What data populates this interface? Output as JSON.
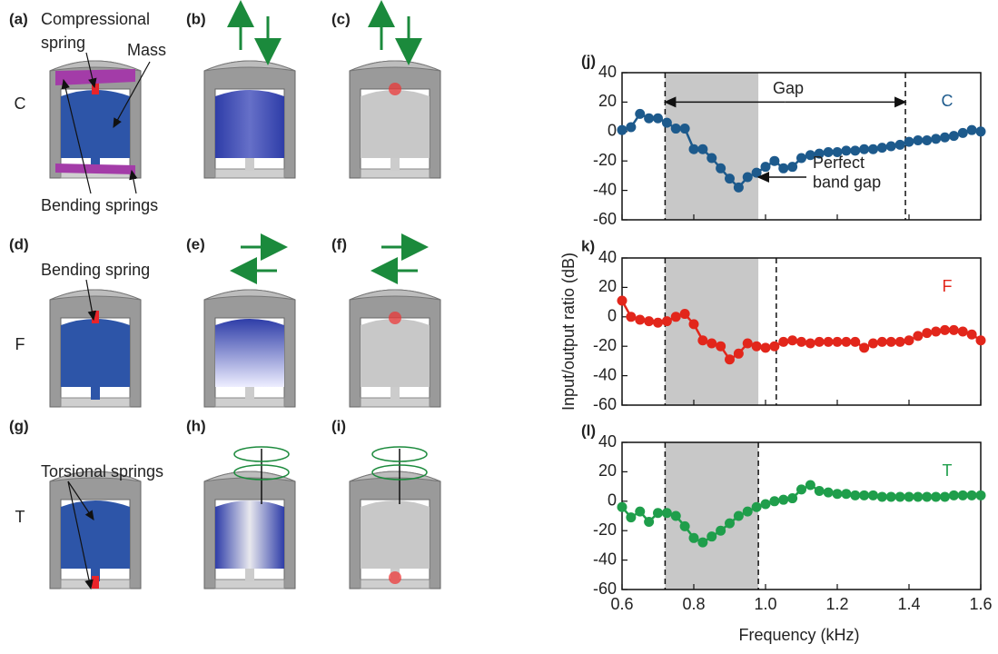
{
  "panels": {
    "labels": [
      "(a)",
      "(b)",
      "(c)",
      "(d)",
      "(e)",
      "(f)",
      "(g)",
      "(h)",
      "(i)"
    ],
    "rows": [
      "C",
      "F",
      "T"
    ],
    "annotations": [
      "Compressional",
      "spring",
      "Mass",
      "Bending springs",
      "Bending spring",
      "Torsional springs"
    ]
  },
  "figure": {
    "xlabel": "Frequency (kHz)",
    "ylabel": "Input/output ratio (dB)"
  },
  "chart_data": [
    {
      "type": "line",
      "panel_label": "(j)",
      "x": [
        0.6,
        0.625,
        0.65,
        0.675,
        0.7,
        0.725,
        0.75,
        0.775,
        0.8,
        0.825,
        0.85,
        0.875,
        0.9,
        0.925,
        0.95,
        0.975,
        1.0,
        1.025,
        1.05,
        1.075,
        1.1,
        1.125,
        1.15,
        1.175,
        1.2,
        1.225,
        1.25,
        1.275,
        1.3,
        1.325,
        1.35,
        1.375,
        1.4,
        1.425,
        1.45,
        1.475,
        1.5,
        1.525,
        1.55,
        1.575,
        1.6
      ],
      "series": [
        {
          "name": "C",
          "color": "#1d5a8c",
          "values": [
            1,
            3,
            12,
            9,
            9,
            6,
            2,
            2,
            -12,
            -12,
            -18,
            -25,
            -32,
            -38,
            -31,
            -28,
            -24,
            -20,
            -25,
            -24,
            -18,
            -16,
            -15,
            -14,
            -14,
            -13,
            -13,
            -12,
            -12,
            -11,
            -10,
            -9,
            -7,
            -6,
            -6,
            -5,
            -4,
            -3,
            -1,
            1,
            0
          ]
        }
      ],
      "xlim": [
        0.6,
        1.6
      ],
      "xticks": [
        0.6,
        0.8,
        1.0,
        1.2,
        1.4,
        1.6
      ],
      "ylim": [
        -60,
        40
      ],
      "yticks": [
        -60,
        -40,
        -20,
        0,
        20,
        40
      ],
      "shaded_region": [
        0.72,
        0.98
      ],
      "dashed_lines": [
        0.72,
        1.39
      ],
      "annotations": [
        "Gap",
        "Perfect",
        "band gap"
      ]
    },
    {
      "type": "line",
      "panel_label": "k)",
      "x": [
        0.6,
        0.625,
        0.65,
        0.675,
        0.7,
        0.725,
        0.75,
        0.775,
        0.8,
        0.825,
        0.85,
        0.875,
        0.9,
        0.925,
        0.95,
        0.975,
        1.0,
        1.025,
        1.05,
        1.075,
        1.1,
        1.125,
        1.15,
        1.175,
        1.2,
        1.225,
        1.25,
        1.275,
        1.3,
        1.325,
        1.35,
        1.375,
        1.4,
        1.425,
        1.45,
        1.475,
        1.5,
        1.525,
        1.55,
        1.575,
        1.6
      ],
      "series": [
        {
          "name": "F",
          "color": "#e2261b",
          "values": [
            11,
            0,
            -2,
            -3,
            -4,
            -3,
            0,
            2,
            -5,
            -16,
            -18,
            -20,
            -29,
            -25,
            -18,
            -20,
            -21,
            -20,
            -17,
            -16,
            -17,
            -18,
            -17,
            -17,
            -17,
            -17,
            -17,
            -21,
            -18,
            -17,
            -17,
            -17,
            -16,
            -13,
            -11,
            -10,
            -9,
            -9,
            -10,
            -12,
            -16
          ]
        }
      ],
      "xlim": [
        0.6,
        1.6
      ],
      "xticks": [
        0.6,
        0.8,
        1.0,
        1.2,
        1.4,
        1.6
      ],
      "ylim": [
        -60,
        40
      ],
      "yticks": [
        -60,
        -40,
        -20,
        0,
        20,
        40
      ],
      "shaded_region": [
        0.72,
        0.98
      ],
      "dashed_lines": [
        0.72,
        1.03
      ]
    },
    {
      "type": "line",
      "panel_label": "(l)",
      "x": [
        0.6,
        0.625,
        0.65,
        0.675,
        0.7,
        0.725,
        0.75,
        0.775,
        0.8,
        0.825,
        0.85,
        0.875,
        0.9,
        0.925,
        0.95,
        0.975,
        1.0,
        1.025,
        1.05,
        1.075,
        1.1,
        1.125,
        1.15,
        1.175,
        1.2,
        1.225,
        1.25,
        1.275,
        1.3,
        1.325,
        1.35,
        1.375,
        1.4,
        1.425,
        1.45,
        1.475,
        1.5,
        1.525,
        1.55,
        1.575,
        1.6
      ],
      "series": [
        {
          "name": "T",
          "color": "#1f9e4b",
          "values": [
            -4,
            -11,
            -7,
            -14,
            -8,
            -8,
            -10,
            -17,
            -25,
            -28,
            -24,
            -20,
            -15,
            -10,
            -7,
            -4,
            -2,
            0,
            1,
            2,
            8,
            11,
            7,
            6,
            5,
            5,
            4,
            4,
            4,
            3,
            3,
            3,
            3,
            3,
            3,
            3,
            3,
            4,
            4,
            4,
            4
          ]
        }
      ],
      "xlim": [
        0.6,
        1.6
      ],
      "xticks": [
        0.6,
        0.8,
        {
          "value": 1,
          "label": "1.0"
        },
        1.2,
        1.4,
        1.6
      ],
      "ylim": [
        -60,
        40
      ],
      "yticks": [
        -60,
        -40,
        -20,
        0,
        20,
        40
      ],
      "shaded_region": [
        0.72,
        0.98
      ],
      "dashed_lines": [
        0.72,
        0.98
      ]
    }
  ]
}
